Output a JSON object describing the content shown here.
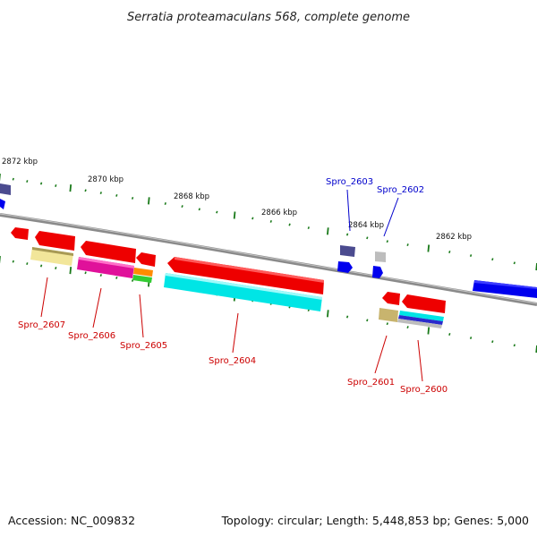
{
  "title": "Serratia proteamaculans 568, complete genome",
  "footer": {
    "accession": "Accession: NC_009832",
    "summary": "Topology: circular; Length: 5,448,853 bp; Genes: 5,000"
  },
  "kbp_labels": [
    "2872 kbp",
    "2870 kbp",
    "2868 kbp",
    "2866 kbp",
    "2864 kbp",
    "2862 kbp"
  ],
  "gene_labels": [
    {
      "name": "Spro_2607",
      "strand": "minus",
      "color": "#cc0000"
    },
    {
      "name": "Spro_2606",
      "strand": "minus",
      "color": "#cc0000"
    },
    {
      "name": "Spro_2605",
      "strand": "minus",
      "color": "#cc0000"
    },
    {
      "name": "Spro_2604",
      "strand": "minus",
      "color": "#cc0000"
    },
    {
      "name": "Spro_2603",
      "strand": "plus",
      "color": "#0000cc"
    },
    {
      "name": "Spro_2602",
      "strand": "plus",
      "color": "#0000cc"
    },
    {
      "name": "Spro_2601",
      "strand": "minus",
      "color": "#cc0000"
    },
    {
      "name": "Spro_2600",
      "strand": "minus",
      "color": "#cc0000"
    }
  ],
  "colors": {
    "backbone": "#8a8a8a",
    "tick": "#1a7a1a",
    "cds_plus": "#0000ee",
    "cds_minus": "#ee0000",
    "cog_cyan": "#00e5e5",
    "cog_magenta": "#e0119a",
    "cog_khaki": "#f2e69a",
    "cog_orange": "#ff8c00",
    "cog_green": "#33cc33",
    "cog_slate": "#4b4b8f",
    "cog_olive": "#c8b46e",
    "cog_grey": "#bdbdbd"
  }
}
